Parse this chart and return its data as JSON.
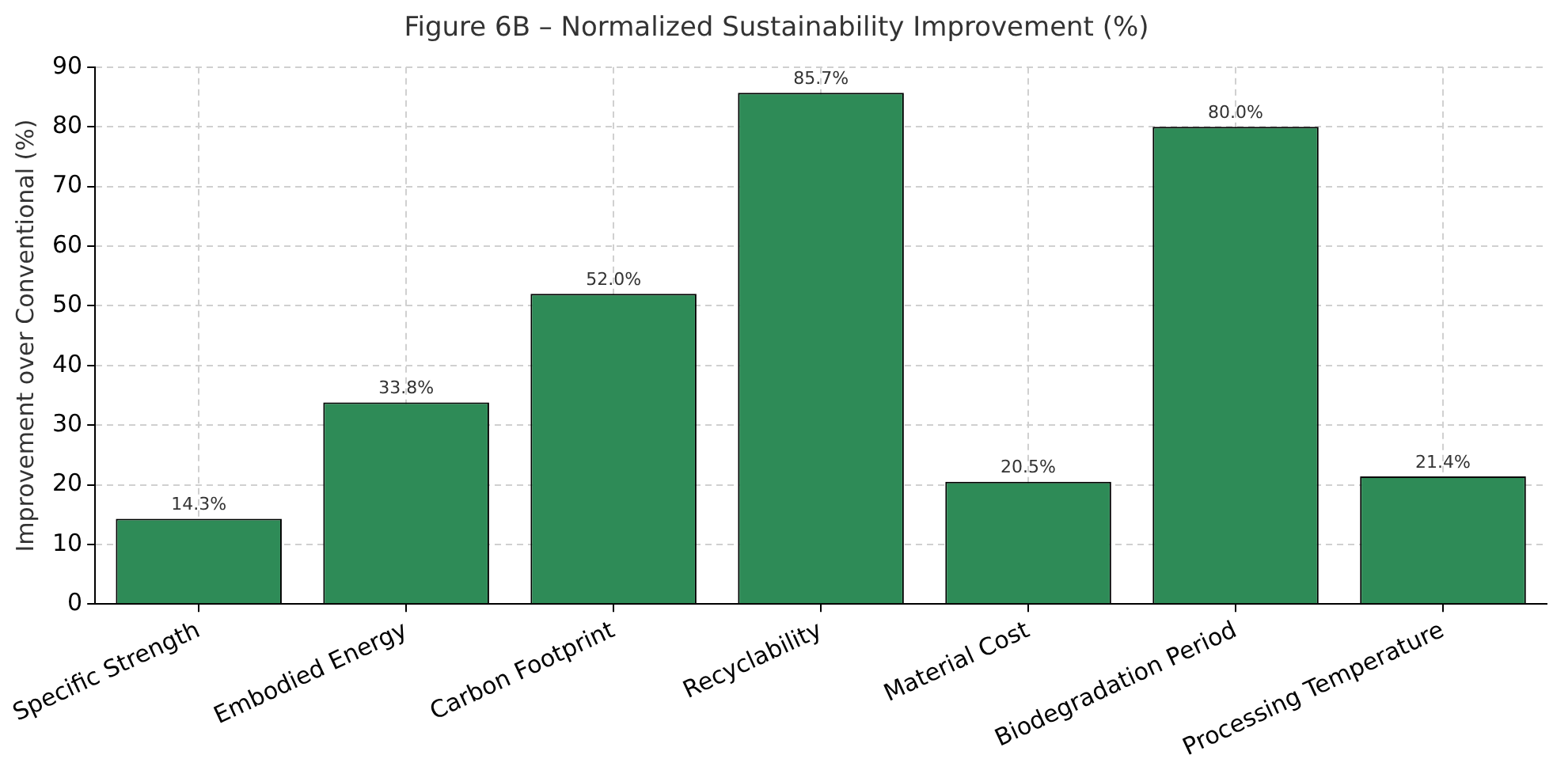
{
  "chart_data": {
    "type": "bar",
    "title": "Figure 6B – Normalized Sustainability Improvement (%)",
    "ylabel": "Improvement over Conventional (%)",
    "categories": [
      "Specific Strength",
      "Embodied Energy",
      "Carbon Footprint",
      "Recyclability",
      "Material Cost",
      "Biodegradation Period",
      "Processing Temperature"
    ],
    "values": [
      14.3,
      33.8,
      52.0,
      85.7,
      20.5,
      80.0,
      21.4
    ],
    "value_labels": [
      "14.3%",
      "33.8%",
      "52.0%",
      "85.7%",
      "20.5%",
      "80.0%",
      "21.4%"
    ],
    "color": "#2e8b57",
    "ylim": [
      0,
      90
    ],
    "yticks": [
      0,
      10,
      20,
      30,
      40,
      50,
      60,
      70,
      80,
      90
    ],
    "grid": true
  }
}
